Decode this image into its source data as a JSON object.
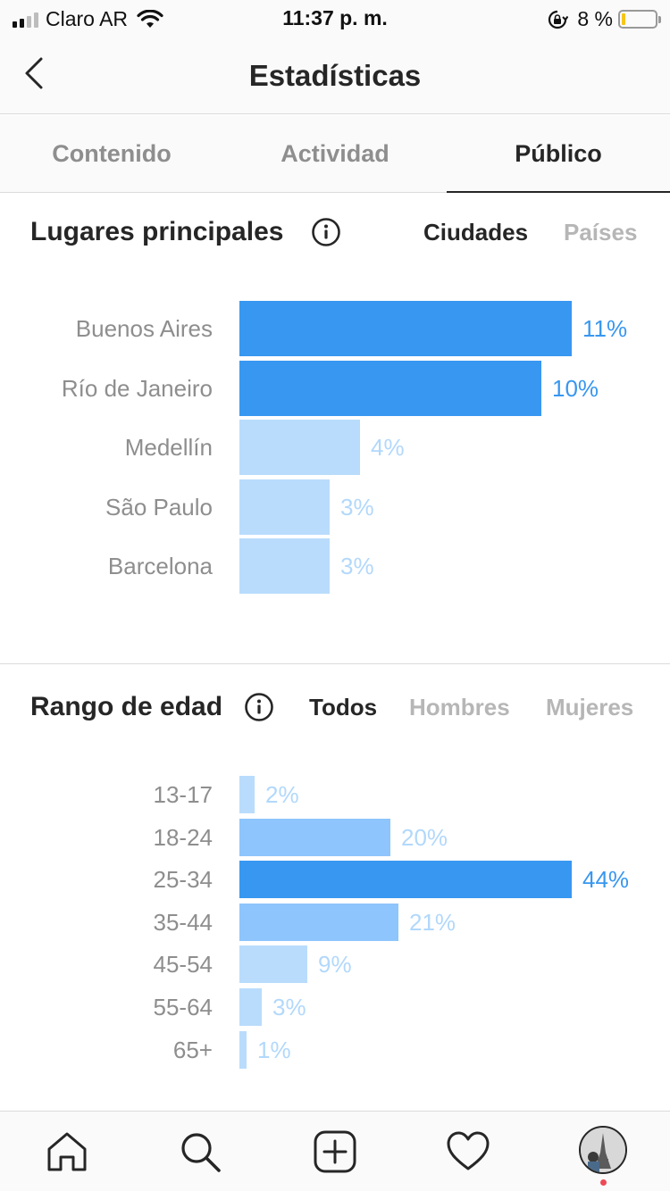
{
  "status": {
    "carrier": "Claro AR",
    "time": "11:37 p. m.",
    "battery_pct": "8 %",
    "battery_level": 0.08,
    "icons": [
      "signal-icon",
      "wifi-icon",
      "orientation-lock-icon",
      "battery-icon"
    ]
  },
  "header": {
    "title": "Estadísticas",
    "back_icon": "chevron-left-icon"
  },
  "tabs": [
    {
      "label": "Contenido",
      "active": false
    },
    {
      "label": "Actividad",
      "active": false
    },
    {
      "label": "Público",
      "active": true
    }
  ],
  "locations": {
    "title": "Lugares principales",
    "filters": [
      {
        "label": "Ciudades",
        "active": true
      },
      {
        "label": "Países",
        "active": false
      }
    ]
  },
  "age": {
    "title": "Rango de edad",
    "filters": [
      {
        "label": "Todos",
        "active": true
      },
      {
        "label": "Hombres",
        "active": false
      },
      {
        "label": "Mujeres",
        "active": false
      }
    ]
  },
  "colors": {
    "strong": "#3897f0",
    "medium": "#8ec5fc",
    "light": "#b9dcfc",
    "light_text": "#b2d8fb",
    "strong_text": "#3897f0"
  },
  "chart_data": [
    {
      "type": "bar",
      "orientation": "horizontal",
      "title": "Lugares principales",
      "categories": [
        "Buenos Aires",
        "Río de Janeiro",
        "Medellín",
        "São Paulo",
        "Barcelona"
      ],
      "values": [
        11,
        10,
        4,
        3,
        3
      ],
      "value_labels": [
        "11%",
        "10%",
        "4%",
        "3%",
        "3%"
      ],
      "unit": "%",
      "xlim": [
        0,
        11
      ],
      "grid": false
    },
    {
      "type": "bar",
      "orientation": "horizontal",
      "title": "Rango de edad",
      "categories": [
        "13-17",
        "18-24",
        "25-34",
        "35-44",
        "45-54",
        "55-64",
        "65+"
      ],
      "values": [
        2,
        20,
        44,
        21,
        9,
        3,
        1
      ],
      "value_labels": [
        "2%",
        "20%",
        "44%",
        "21%",
        "9%",
        "3%",
        "1%"
      ],
      "unit": "%",
      "xlim": [
        0,
        44
      ],
      "grid": false
    }
  ],
  "tabbar": {
    "items": [
      "home-icon",
      "search-icon",
      "add-post-icon",
      "heart-icon",
      "profile-avatar"
    ]
  }
}
